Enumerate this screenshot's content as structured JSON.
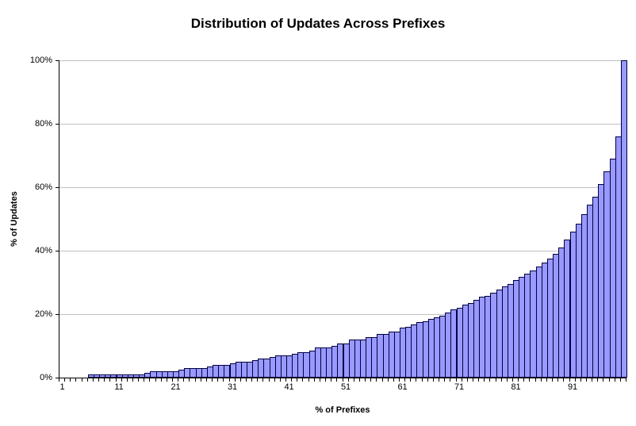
{
  "chart_data": {
    "type": "bar",
    "title": "Distribution of Updates Across Prefixes",
    "xlabel": "% of Prefixes",
    "ylabel": "% of Updates",
    "x_range": [
      1,
      100
    ],
    "ylim": [
      0,
      100
    ],
    "grid": "horizontal-20pct",
    "legend": "none",
    "y_tick_values": [
      0,
      20,
      40,
      60,
      80,
      100
    ],
    "y_tick_labels": [
      "0%",
      "20%",
      "40%",
      "60%",
      "80%",
      "100%"
    ],
    "x_tick_values": [
      1,
      11,
      21,
      31,
      41,
      51,
      61,
      71,
      81,
      91
    ],
    "x_tick_labels": [
      "1",
      "11",
      "21",
      "31",
      "41",
      "51",
      "61",
      "71",
      "81",
      "91"
    ],
    "bar_fill": "#9999ff",
    "bar_border": "#000040",
    "gridline_color": "#c0c0c0",
    "axis_color": "#000000",
    "series": [
      {
        "name": "% of Updates",
        "values": [
          0,
          0,
          0,
          0,
          0,
          1,
          1,
          1,
          1,
          1,
          1,
          1,
          1,
          1,
          1,
          1.5,
          2,
          2,
          2,
          2,
          2,
          2.5,
          3,
          3,
          3,
          3,
          3.5,
          4,
          4,
          4,
          4.5,
          5,
          5,
          5,
          5.5,
          6,
          6,
          6.5,
          7,
          7,
          7,
          7.5,
          8,
          8,
          8.6,
          9.4,
          9.4,
          9.5,
          10,
          10.7,
          10.7,
          11.9,
          11.9,
          12,
          12.8,
          12.8,
          13.8,
          13.8,
          14.4,
          14.5,
          15.8,
          16,
          16.7,
          17.5,
          17.8,
          18.6,
          19,
          19.5,
          20.5,
          21.5,
          22,
          23,
          23.6,
          24.5,
          25.4,
          25.8,
          26.8,
          27.8,
          28.8,
          29.5,
          30.7,
          31.8,
          32.8,
          33.8,
          35,
          36.3,
          37.5,
          39,
          41,
          43.5,
          46,
          48.5,
          51.5,
          54.5,
          57,
          61,
          65,
          69,
          76,
          100
        ]
      }
    ]
  }
}
